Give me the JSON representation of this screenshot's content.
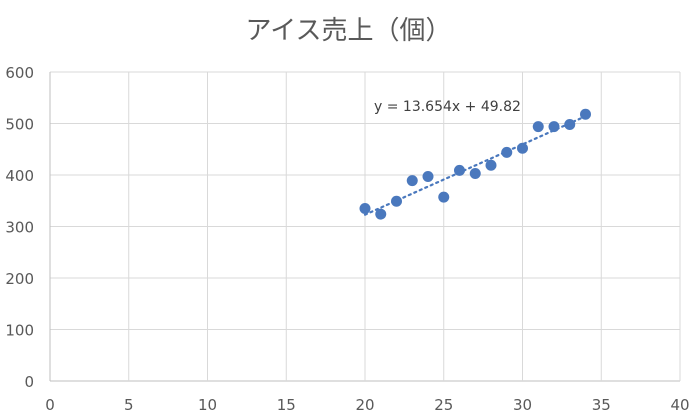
{
  "chart_data": {
    "type": "scatter",
    "title": "アイス売上（個）",
    "xlabel": "",
    "ylabel": "",
    "xlim": [
      0,
      40
    ],
    "ylim": [
      0,
      600
    ],
    "x_ticks": [
      0,
      5,
      10,
      15,
      20,
      25,
      30,
      35,
      40
    ],
    "y_ticks": [
      0,
      100,
      200,
      300,
      400,
      500,
      600
    ],
    "grid": true,
    "legend": "none",
    "colors": {
      "marker": "#4a78bd",
      "trendline": "#4a78bd",
      "grid": "#d9d9d9",
      "text": "#595959"
    },
    "points": [
      {
        "x": 20,
        "y": 335
      },
      {
        "x": 21,
        "y": 324
      },
      {
        "x": 22,
        "y": 349
      },
      {
        "x": 23,
        "y": 389
      },
      {
        "x": 24,
        "y": 397
      },
      {
        "x": 25,
        "y": 357
      },
      {
        "x": 26,
        "y": 409
      },
      {
        "x": 27,
        "y": 403
      },
      {
        "x": 28,
        "y": 419
      },
      {
        "x": 29,
        "y": 444
      },
      {
        "x": 30,
        "y": 452
      },
      {
        "x": 31,
        "y": 494
      },
      {
        "x": 32,
        "y": 494
      },
      {
        "x": 33,
        "y": 498
      },
      {
        "x": 34,
        "y": 518
      }
    ],
    "trendline": {
      "type": "linear",
      "slope": 13.654,
      "intercept": 49.82,
      "x_range": [
        20,
        34
      ],
      "style": "dotted",
      "equation_label": "y = 13.654x + 49.82"
    }
  }
}
